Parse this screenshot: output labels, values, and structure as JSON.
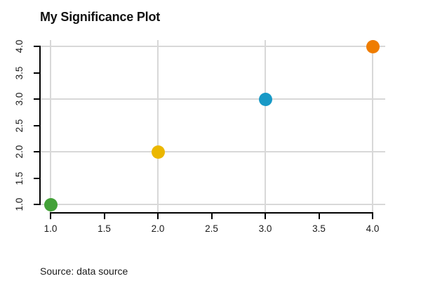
{
  "title": "My Significance Plot",
  "source_note": "Source: data source",
  "chart_data": {
    "type": "scatter",
    "title": "My Significance Plot",
    "xlabel": "",
    "ylabel": "",
    "xlim": [
      0.88,
      4.12
    ],
    "ylim": [
      0.88,
      4.12
    ],
    "x_ticks": [
      1.0,
      1.5,
      2.0,
      2.5,
      3.0,
      3.5,
      4.0
    ],
    "y_ticks": [
      1.0,
      1.5,
      2.0,
      2.5,
      3.0,
      3.5,
      4.0
    ],
    "x_tick_labels": [
      "1.0",
      "1.5",
      "2.0",
      "2.5",
      "3.0",
      "3.5",
      "4.0"
    ],
    "y_tick_labels": [
      "1.0",
      "1.5",
      "2.0",
      "2.5",
      "3.0",
      "3.5",
      "4.0"
    ],
    "grid": true,
    "grid_x": [
      1,
      2,
      3,
      4
    ],
    "grid_y": [
      1,
      2,
      3,
      4
    ],
    "grid_color": "#d8d8d8",
    "axis_color": "#000000",
    "background_color": "#ffffff",
    "marker_diameter_px": 19,
    "points": [
      {
        "x": 1,
        "y": 1,
        "color": "#43a138",
        "color_name": "green"
      },
      {
        "x": 2,
        "y": 2,
        "color": "#ebb700",
        "color_name": "gold"
      },
      {
        "x": 3,
        "y": 3,
        "color": "#1899c6",
        "color_name": "blue"
      },
      {
        "x": 4,
        "y": 4,
        "color": "#ef7d00",
        "color_name": "orange"
      }
    ],
    "legend": null,
    "annotations": [],
    "source": "Source: data source"
  }
}
